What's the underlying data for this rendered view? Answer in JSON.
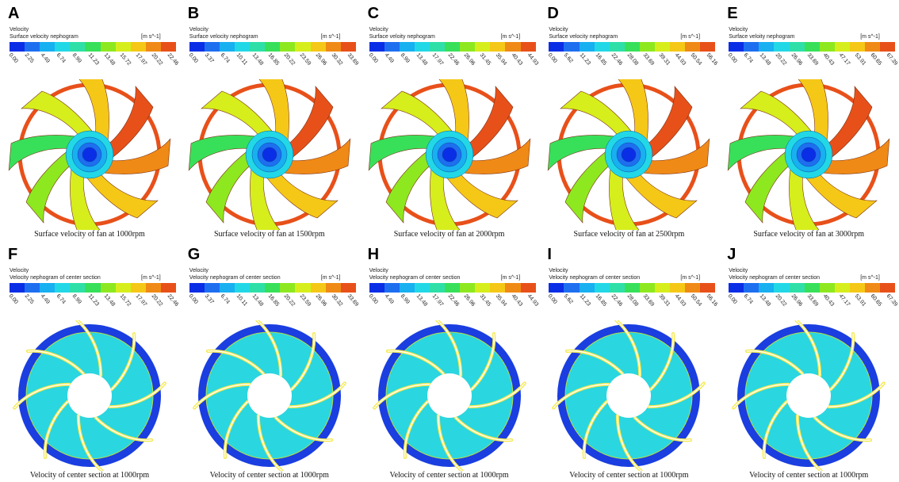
{
  "colors": {
    "scale": [
      "#0a2ee6",
      "#1e6ff0",
      "#18b0f0",
      "#22d8e6",
      "#2ee0a8",
      "#38e05a",
      "#8ee820",
      "#d6ee1c",
      "#f5c818",
      "#f08a16",
      "#e8501a"
    ],
    "fan_orange": "#e8501a",
    "hub_blue": "#0a2ee6",
    "section_ring": "#1a3ee0",
    "section_fill": "#2ad6e0"
  },
  "panels": [
    {
      "letter": "A",
      "type": "fan",
      "legend_title": "Velocity",
      "legend_subtitle": "Surface velocity nephogram",
      "legend_unit": "[m s^-1]",
      "ticks": [
        "0.00",
        "2.25",
        "4.49",
        "6.74",
        "8.99",
        "11.23",
        "13.48",
        "15.72",
        "17.97",
        "20.22",
        "22.46"
      ],
      "caption": "Surface velocity of fan at 1000rpm"
    },
    {
      "letter": "B",
      "type": "fan",
      "legend_title": "Velocity",
      "legend_subtitle": "Surface velocity nephogram",
      "legend_unit": "[m s^-1]",
      "ticks": [
        "0.00",
        "3.37",
        "6.74",
        "10.11",
        "13.48",
        "16.85",
        "20.22",
        "23.59",
        "26.96",
        "30.32",
        "33.69"
      ],
      "caption": "Surface velocity of fan at 1500rpm"
    },
    {
      "letter": "C",
      "type": "fan",
      "legend_title": "Velocity",
      "legend_subtitle": "Surface veloity nephogram",
      "legend_unit": "[m s^-1]",
      "ticks": [
        "0.00",
        "4.49",
        "8.99",
        "13.48",
        "17.97",
        "22.46",
        "26.96",
        "31.45",
        "35.94",
        "40.43",
        "44.93"
      ],
      "caption": "Surface velocity of fan at 2000rpm"
    },
    {
      "letter": "D",
      "type": "fan",
      "legend_title": "Velocity",
      "legend_subtitle": "Surface velocity nephogram",
      "legend_unit": "[m s^-1]",
      "ticks": [
        "0.00",
        "5.62",
        "11.23",
        "16.85",
        "22.46",
        "28.08",
        "33.69",
        "39.31",
        "44.93",
        "50.54",
        "56.16"
      ],
      "caption": "Surface velocity of fan at 2500rpm"
    },
    {
      "letter": "E",
      "type": "fan",
      "legend_title": "Velocity",
      "legend_subtitle": "Surface veloity nephogram",
      "legend_unit": "[m s^-1]",
      "ticks": [
        "0.00",
        "6.74",
        "13.48",
        "20.22",
        "26.96",
        "33.69",
        "40.43",
        "47.17",
        "53.91",
        "60.65",
        "67.39"
      ],
      "caption": "Surface velocity of fan at 3000rpm"
    },
    {
      "letter": "F",
      "type": "section",
      "legend_title": "Velocity",
      "legend_subtitle": "Velocity nephogram of center section",
      "legend_unit": "[m s^-1]",
      "ticks": [
        "0.00",
        "2.25",
        "4.49",
        "6.74",
        "8.99",
        "11.23",
        "13.48",
        "15.72",
        "17.97",
        "20.22",
        "22.46"
      ],
      "caption": "Velocity of center section at 1000rpm"
    },
    {
      "letter": "G",
      "type": "section",
      "legend_title": "Velocity",
      "legend_subtitle": "Velocity nephogram of center section",
      "legend_unit": "[m s^-1]",
      "ticks": [
        "0.00",
        "3.37",
        "6.74",
        "10.11",
        "13.48",
        "16.85",
        "20.22",
        "23.59",
        "26.96",
        "30.32",
        "33.69"
      ],
      "caption": "Velocity of center section at 1000rpm"
    },
    {
      "letter": "H",
      "type": "section",
      "legend_title": "Velocity",
      "legend_subtitle": "Velocity nephogram of center section",
      "legend_unit": "[m s^-1]",
      "ticks": [
        "0.00",
        "4.49",
        "8.99",
        "13.48",
        "17.97",
        "22.46",
        "26.96",
        "31.45",
        "35.94",
        "40.43",
        "44.93"
      ],
      "caption": "Velocity of center section at 1000rpm"
    },
    {
      "letter": "I",
      "type": "section",
      "legend_title": "Velocity",
      "legend_subtitle": "Velocity nephogram of center section",
      "legend_unit": "[m s^-1]",
      "ticks": [
        "0.00",
        "5.62",
        "11.23",
        "16.85",
        "22.46",
        "28.08",
        "33.69",
        "39.31",
        "44.93",
        "50.54",
        "56.16"
      ],
      "caption": "Velocity of center section at 1000rpm"
    },
    {
      "letter": "J",
      "type": "section",
      "legend_title": "Velocity",
      "legend_subtitle": "Velocity nephogram of center section",
      "legend_unit": "[m s^-1]",
      "ticks": [
        "0.00",
        "6.74",
        "13.48",
        "20.22",
        "26.96",
        "33.69",
        "40.43",
        "47.17",
        "53.91",
        "60.65",
        "67.39"
      ],
      "caption": "Velocity of center section at 1000rpm"
    }
  ]
}
